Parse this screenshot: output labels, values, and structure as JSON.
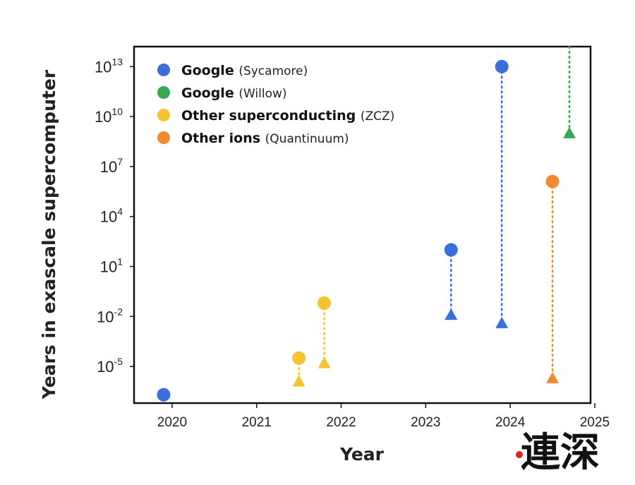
{
  "chart_data": {
    "type": "scatter",
    "log_y": true,
    "xlim": [
      2019.55,
      2024.95
    ],
    "ylim_log10": [
      -7.2,
      14.2
    ],
    "xlabel": "Year",
    "ylabel": "Years in exascale supercomputer",
    "x_ticks": [
      "2020",
      "2021",
      "2022",
      "2023",
      "2024",
      "2025"
    ],
    "x_tick_values": [
      2020,
      2021,
      2022,
      2023,
      2024,
      2025
    ],
    "y_ticks_log10": [
      13,
      10,
      7,
      4,
      1,
      -2,
      -5
    ],
    "y_tick_base": "10",
    "legend_placement": "top-left",
    "grid": false,
    "series": [
      {
        "name": "Google",
        "name_detail": "(Sycamore)",
        "color": "#3a6fd8",
        "points": [
          {
            "x": 2019.9,
            "circle_log10": -6.7,
            "triangle_log10": null
          },
          {
            "x": 2023.3,
            "circle_log10": 2.0,
            "triangle_log10": -1.9
          },
          {
            "x": 2023.9,
            "circle_log10": 13.0,
            "triangle_log10": -2.4
          }
        ]
      },
      {
        "name": "Google",
        "name_detail": "(Willow)",
        "color": "#34a853",
        "points": [
          {
            "x": 2024.7,
            "circle_log10": null,
            "triangle_log10": 9.0,
            "line_to_top": true
          }
        ]
      },
      {
        "name": "Other superconducting",
        "name_detail": "(ZCZ)",
        "color": "#f4c430",
        "points": [
          {
            "x": 2021.5,
            "circle_log10": -4.5,
            "triangle_log10": -5.9
          },
          {
            "x": 2021.8,
            "circle_log10": -1.2,
            "triangle_log10": -4.8
          }
        ]
      },
      {
        "name": "Other ions",
        "name_detail": "(Quantinuum)",
        "color": "#f0892f",
        "points": [
          {
            "x": 2024.5,
            "circle_log10": 6.1,
            "triangle_log10": -5.7
          }
        ]
      }
    ]
  },
  "watermark": {
    "text": "連深"
  }
}
